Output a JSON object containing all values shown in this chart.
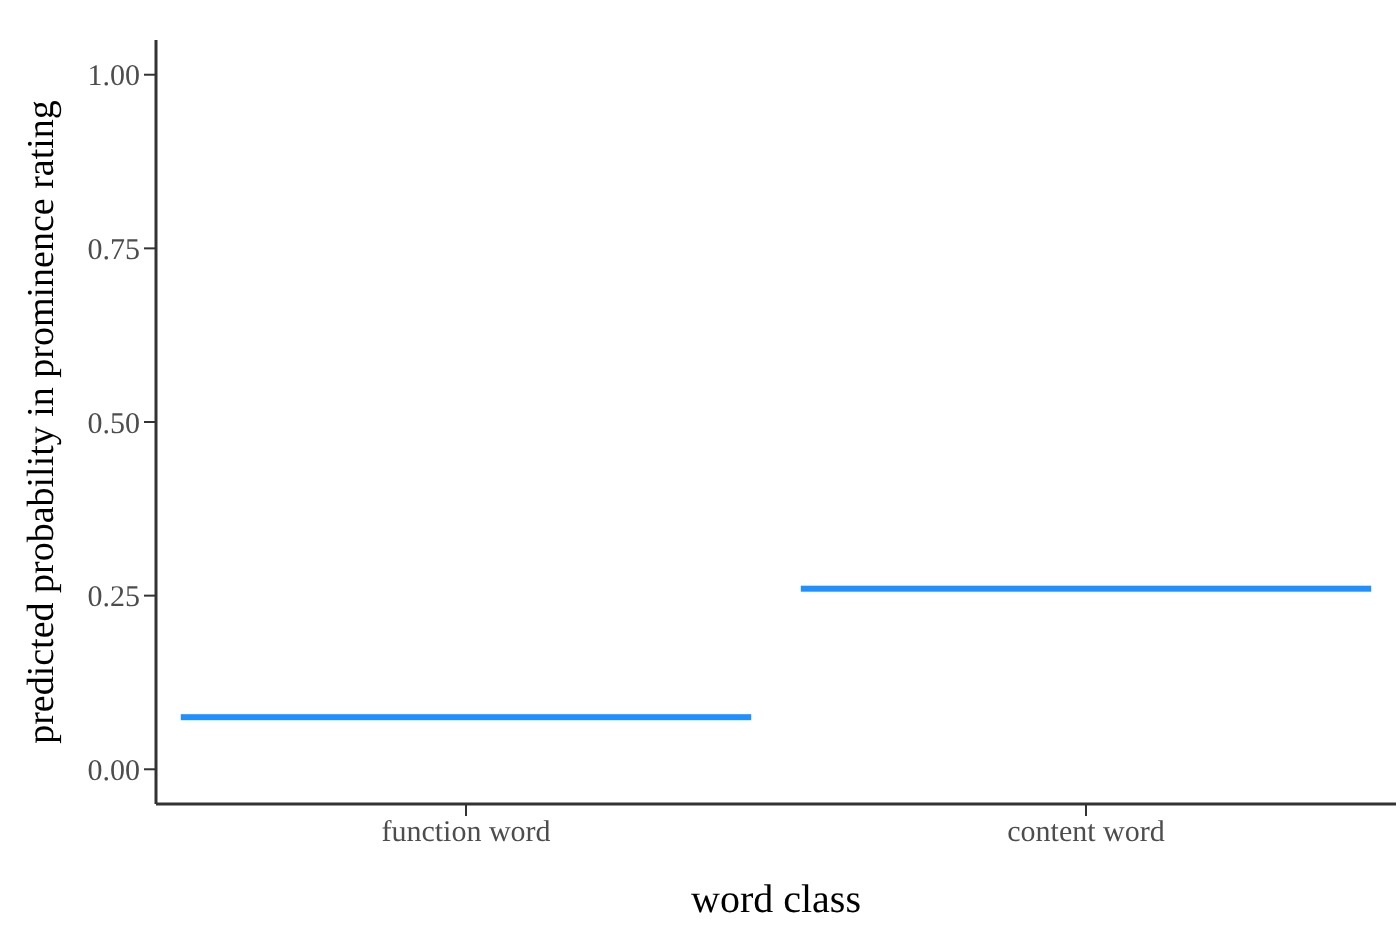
{
  "chart_data": {
    "type": "box",
    "xlabel": "word class",
    "ylabel": "predicted probability in prominence rating",
    "categories": [
      "function word",
      "content word"
    ],
    "series": [
      {
        "color": "#1e90ff",
        "boxes": [
          {
            "low": 0.075,
            "q1": 0.075,
            "median": 0.075,
            "q3": 0.075,
            "high": 0.075
          },
          {
            "low": 0.26,
            "q1": 0.26,
            "median": 0.26,
            "q3": 0.26,
            "high": 0.26
          }
        ]
      }
    ],
    "ylim": [
      -0.05,
      1.05
    ],
    "yticks": [
      {
        "value": 0,
        "label": "0.00"
      },
      {
        "value": 0.25,
        "label": "0.25"
      },
      {
        "value": 0.5,
        "label": "0.50"
      },
      {
        "value": 0.75,
        "label": "0.75"
      },
      {
        "value": 1,
        "label": "1.00"
      }
    ],
    "grid": false,
    "legend": false
  }
}
